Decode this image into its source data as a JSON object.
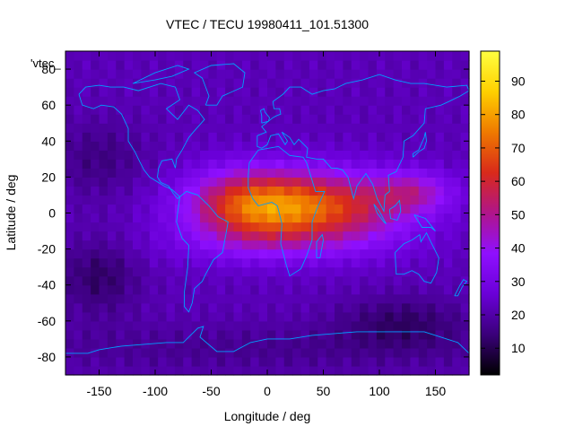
{
  "chart_data": {
    "type": "heatmap",
    "title": "VTEC / TECU 19980411_101.51300",
    "xlabel": "Longitude / deg",
    "ylabel": "Latitude / deg",
    "key_label": "'vtec_",
    "xlim": [
      -180,
      180
    ],
    "ylim": [
      -90,
      90
    ],
    "x_ticks": [
      -150,
      -100,
      -50,
      0,
      50,
      100,
      150
    ],
    "y_ticks": [
      -80,
      -60,
      -40,
      -20,
      0,
      20,
      40,
      60,
      80
    ],
    "colorbar": {
      "range": [
        2,
        99
      ],
      "ticks": [
        10,
        20,
        30,
        40,
        50,
        60,
        70,
        80,
        90
      ],
      "palette": [
        "#000000",
        "#3a007a",
        "#6a00d8",
        "#8f10ff",
        "#b0158a",
        "#d92a1a",
        "#ef7a00",
        "#ffd000",
        "#ffff40"
      ]
    },
    "background_level": 22,
    "coastline_color": "#00a0ff",
    "tec_features": [
      {
        "lon": 35,
        "lat": 3,
        "sigma_lon": 60,
        "sigma_lat": 14,
        "amplitude": 48
      },
      {
        "lon": -20,
        "lat": 5,
        "sigma_lon": 35,
        "sigma_lat": 14,
        "amplitude": 22
      },
      {
        "lon": 130,
        "lat": 12,
        "sigma_lon": 25,
        "sigma_lat": 8,
        "amplitude": 18
      },
      {
        "lon": 0,
        "lat": -18,
        "sigma_lon": 80,
        "sigma_lat": 8,
        "amplitude": 6
      },
      {
        "lon": -150,
        "lat": -35,
        "sigma_lon": 25,
        "sigma_lat": 15,
        "amplitude": -10
      },
      {
        "lon": -150,
        "lat": 30,
        "sigma_lon": 30,
        "sigma_lat": 15,
        "amplitude": -7
      },
      {
        "lon": 120,
        "lat": -60,
        "sigma_lon": 40,
        "sigma_lat": 10,
        "amplitude": -9
      },
      {
        "lon": 0,
        "lat": -75,
        "sigma_lon": 200,
        "sigma_lat": 10,
        "amplitude": -5
      }
    ]
  }
}
